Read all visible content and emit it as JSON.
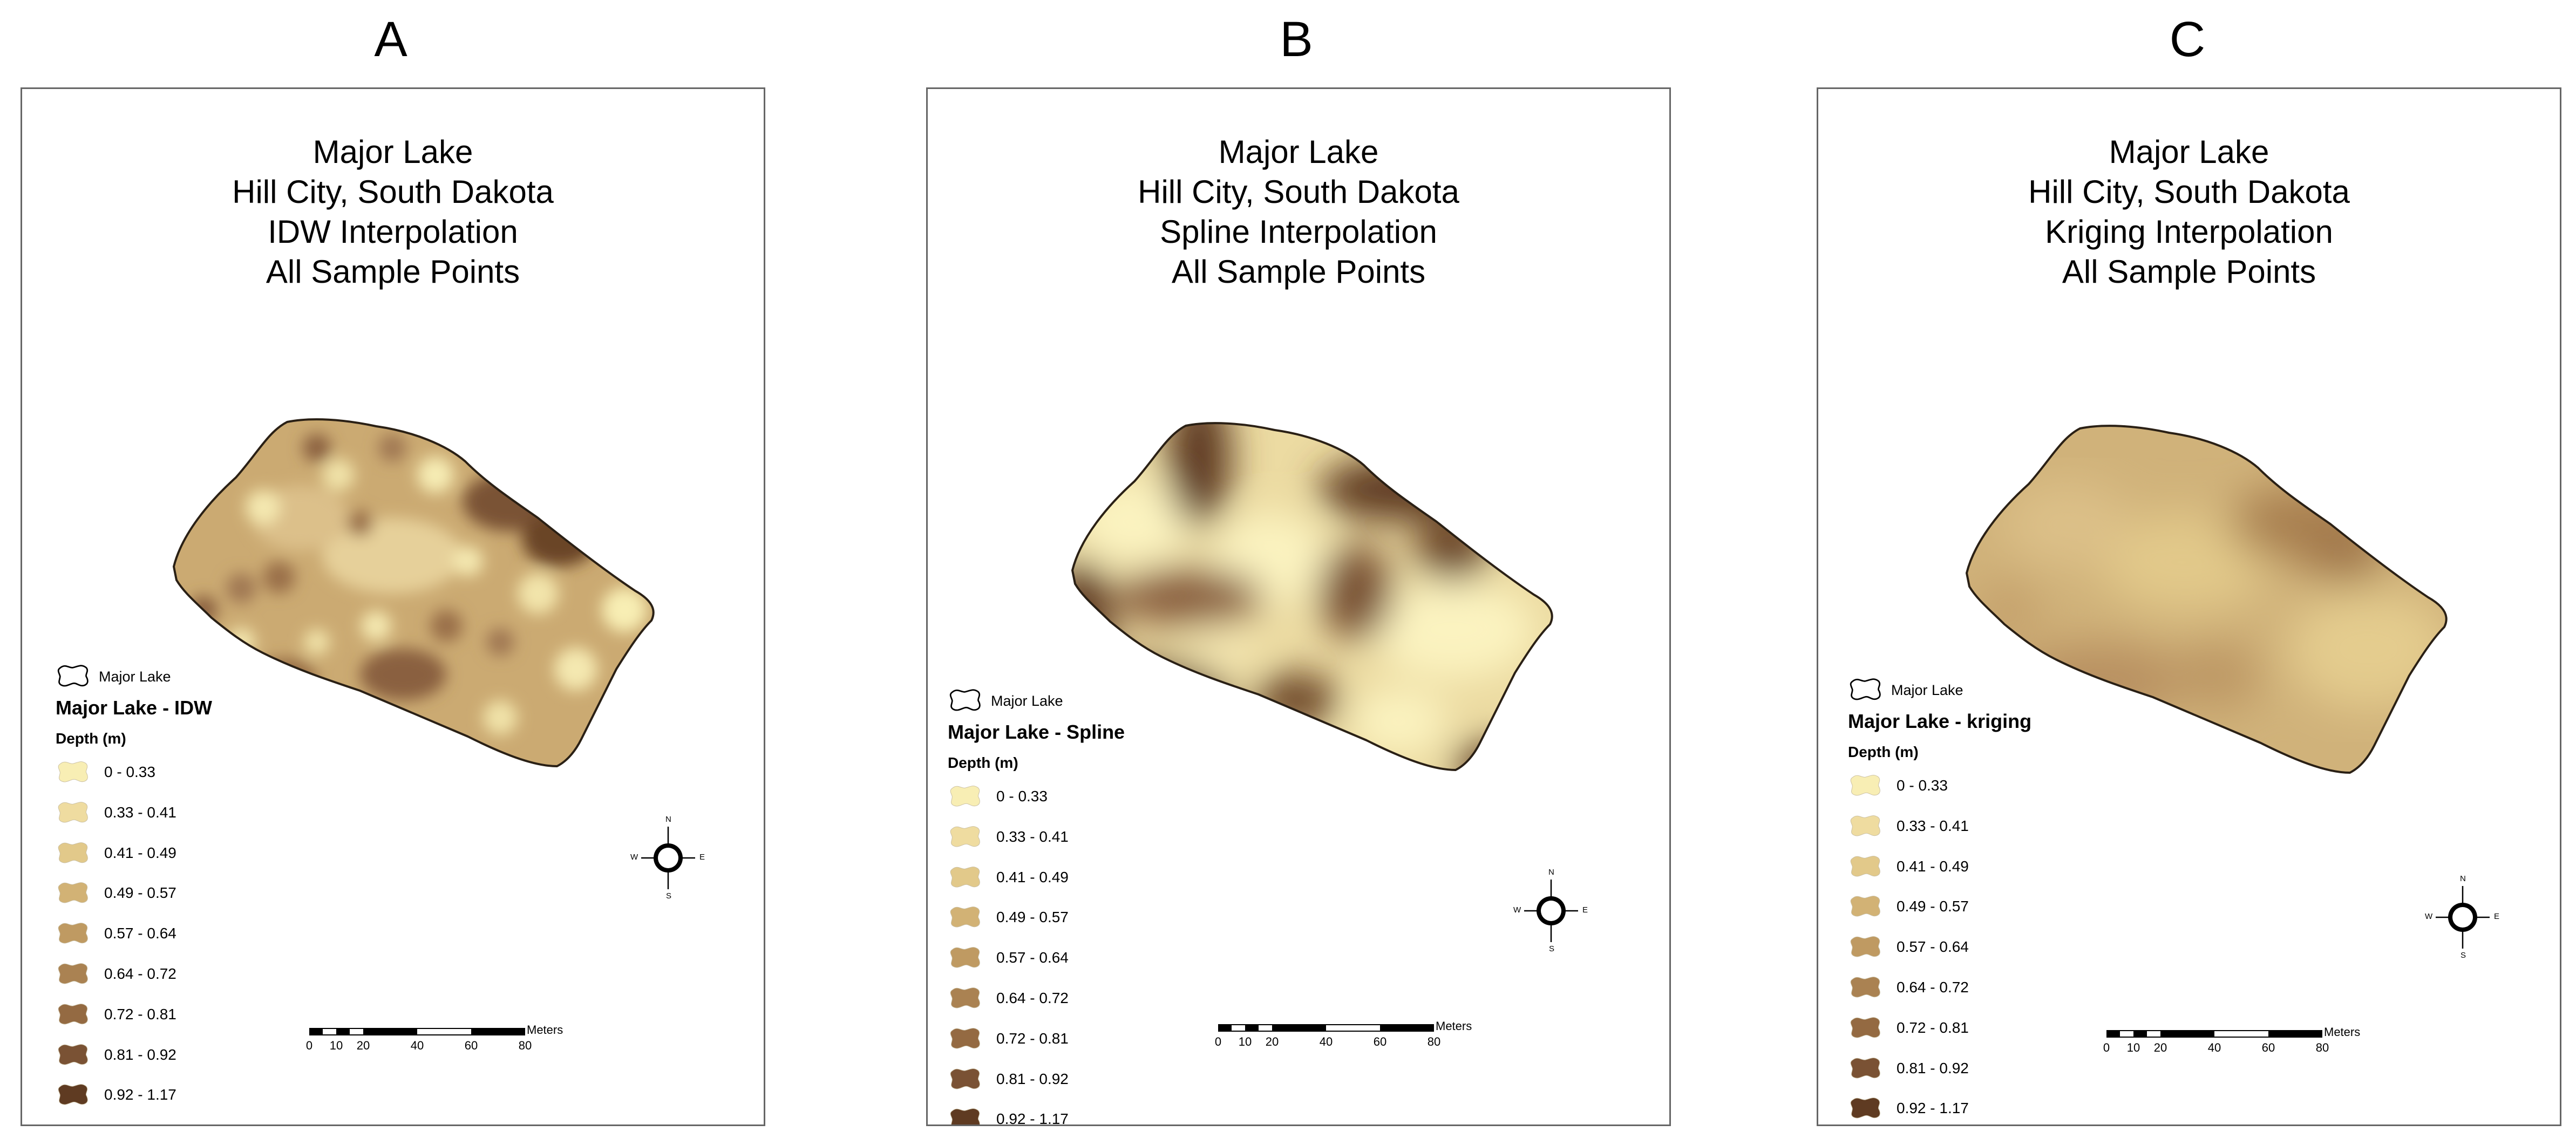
{
  "panels": [
    {
      "letter": "A",
      "title_lines": [
        "Major Lake",
        "Hill City, South Dakota",
        "IDW Interpolation",
        "All Sample Points"
      ],
      "legend": {
        "outline_label": "Major Lake",
        "layer_title": "Major Lake - IDW",
        "field_label": "Depth (m)",
        "classes": [
          "0 - 0.33",
          "0.33 - 0.41",
          "0.41 - 0.49",
          "0.49 - 0.57",
          "0.57 - 0.64",
          "0.64 - 0.72",
          "0.72 - 0.81",
          "0.81 - 0.92",
          "0.92 - 1.17"
        ]
      },
      "scalebar": {
        "unit": "Meters",
        "ticks": [
          "0",
          "10",
          "20",
          "40",
          "60",
          "80"
        ]
      }
    },
    {
      "letter": "B",
      "title_lines": [
        "Major Lake",
        "Hill City, South Dakota",
        "Spline Interpolation",
        "All Sample Points"
      ],
      "legend": {
        "outline_label": "Major Lake",
        "layer_title": "Major Lake - Spline",
        "field_label": "Depth (m)",
        "classes": [
          "0 - 0.33",
          "0.33 - 0.41",
          "0.41 - 0.49",
          "0.49 - 0.57",
          "0.57 - 0.64",
          "0.64 - 0.72",
          "0.72 - 0.81",
          "0.81 - 0.92",
          "0.92 - 1.17"
        ]
      },
      "scalebar": {
        "unit": "Meters",
        "ticks": [
          "0",
          "10",
          "20",
          "40",
          "60",
          "80"
        ]
      }
    },
    {
      "letter": "C",
      "title_lines": [
        "Major Lake",
        "Hill City, South Dakota",
        "Kriging Interpolation",
        "All Sample Points"
      ],
      "legend": {
        "outline_label": "Major Lake",
        "layer_title": "Major Lake - kriging",
        "field_label": "Depth (m)",
        "classes": [
          "0 - 0.33",
          "0.33 - 0.41",
          "0.41 - 0.49",
          "0.49 - 0.57",
          "0.57 - 0.64",
          "0.64 - 0.72",
          "0.72 - 0.81",
          "0.81 - 0.92",
          "0.92 - 1.17"
        ]
      },
      "scalebar": {
        "unit": "Meters",
        "ticks": [
          "0",
          "10",
          "20",
          "40",
          "60",
          "80"
        ]
      }
    }
  ],
  "north_arrow": {
    "n": "N",
    "s": "S",
    "e": "E",
    "w": "W"
  },
  "depth_colors": [
    "#f8eeb4",
    "#efdca0",
    "#e2c98a",
    "#d2b275",
    "#bf9a62",
    "#aa8252",
    "#946a42",
    "#7a5234",
    "#5f3b22"
  ]
}
